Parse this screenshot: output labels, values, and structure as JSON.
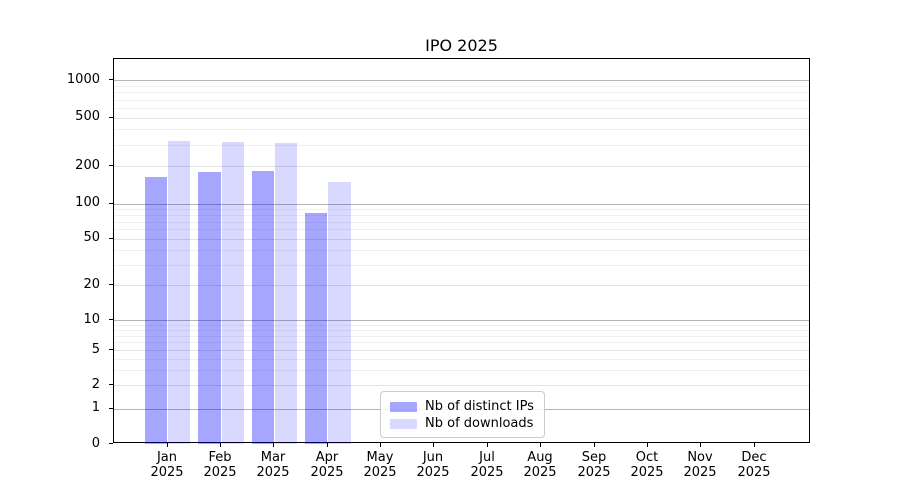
{
  "title": "IPO 2025",
  "chart_data": {
    "type": "bar",
    "title": "IPO 2025",
    "categories": [
      "Jan 2025",
      "Feb 2025",
      "Mar 2025",
      "Apr 2025",
      "May 2025",
      "Jun 2025",
      "Jul 2025",
      "Aug 2025",
      "Sep 2025",
      "Oct 2025",
      "Nov 2025",
      "Dec 2025"
    ],
    "x_axis": {
      "months": [
        "Jan",
        "Feb",
        "Mar",
        "Apr",
        "May",
        "Jun",
        "Jul",
        "Aug",
        "Sep",
        "Oct",
        "Nov",
        "Dec"
      ],
      "year": "2025"
    },
    "y_axis": {
      "scale": "symlog",
      "tick_values": [
        1000,
        500,
        200,
        100,
        50,
        20,
        10,
        5,
        2,
        1,
        0
      ],
      "tick_labels": [
        "1000",
        "500",
        "200",
        "100",
        "50",
        "20",
        "10",
        "5",
        "2",
        "1",
        "0"
      ],
      "ylim": [
        0,
        1500
      ],
      "grid": "on",
      "minor_labeled_values": [
        2,
        5,
        20,
        50,
        200,
        500
      ],
      "major_values": [
        1,
        10,
        100,
        1000
      ],
      "minor_sub_values": [
        3,
        4,
        6,
        7,
        8,
        9,
        30,
        40,
        60,
        70,
        80,
        90,
        300,
        400,
        600,
        700,
        800,
        900
      ]
    },
    "series": [
      {
        "name": "Nb of distinct IPs",
        "color": "rgba(0,0,255,0.35)",
        "color_flat": "#a6a6ff",
        "values": [
          163,
          179,
          182,
          84,
          null,
          null,
          null,
          null,
          null,
          null,
          null,
          null
        ]
      },
      {
        "name": "Nb of downloads",
        "color": "rgba(0,0,255,0.15)",
        "color_flat": "#d9d9ff",
        "values": [
          320,
          315,
          312,
          149,
          null,
          null,
          null,
          null,
          null,
          null,
          null,
          null
        ]
      }
    ],
    "legend": {
      "position": "lower center",
      "entries": [
        "Nb of distinct IPs",
        "Nb of downloads"
      ]
    }
  },
  "colors": {
    "background": "#ffffff",
    "axis": "#000000",
    "text": "#000000",
    "grid_major": "#b6b6b6",
    "grid_minor_labeled": "#e2e2e2",
    "grid_minor_sub": "#f0f0f0",
    "legend_border": "#cccccc"
  }
}
